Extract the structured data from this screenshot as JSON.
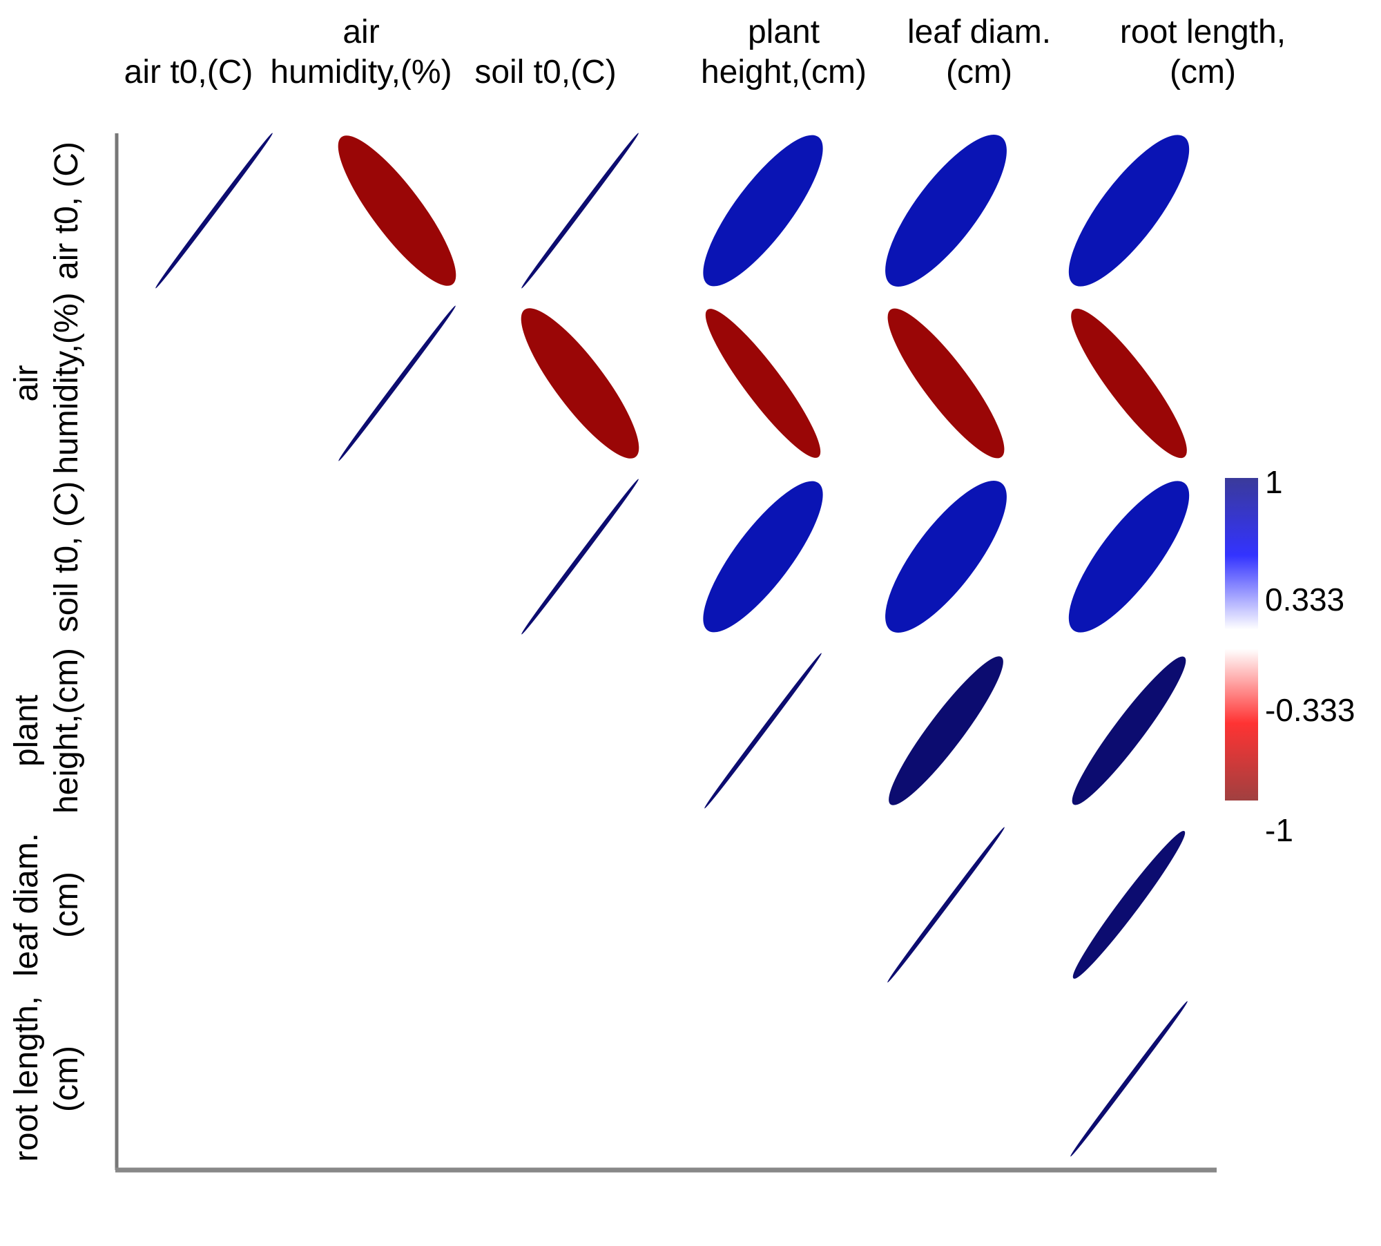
{
  "chart_data": {
    "type": "heatmap",
    "subtype": "correlation-ellipse-upper-triangle",
    "variables": [
      [
        "air t0,(C)"
      ],
      [
        "air",
        "humidity,(%)"
      ],
      [
        "soil t0,(C)"
      ],
      [
        "plant",
        "height,(cm)"
      ],
      [
        "leaf diam.",
        "(cm)"
      ],
      [
        "root length,",
        "(cm)"
      ]
    ],
    "row_labels": [
      [
        "air t0, (C)"
      ],
      [
        "air",
        "humidity,(%)"
      ],
      [
        "soil t0, (C)"
      ],
      [
        "plant",
        "height,(cm)"
      ],
      [
        "leaf diam.",
        "(cm)"
      ],
      [
        "root length,",
        "(cm)"
      ]
    ],
    "correlation_matrix": [
      [
        1.0,
        -0.85,
        1.0,
        0.8,
        0.75,
        0.78
      ],
      [
        null,
        1.0,
        -0.85,
        -0.92,
        -0.88,
        -0.9
      ],
      [
        null,
        null,
        1.0,
        0.8,
        0.75,
        0.78
      ],
      [
        null,
        null,
        null,
        1.0,
        0.93,
        0.95
      ],
      [
        null,
        null,
        null,
        null,
        1.0,
        0.98
      ],
      [
        null,
        null,
        null,
        null,
        null,
        1.0
      ]
    ],
    "colorbar": {
      "range": [
        -1,
        1
      ],
      "ticks": [
        "1",
        "0.333",
        "-0.333",
        "-1"
      ],
      "tick_values": [
        1,
        0.333,
        -0.333,
        -1
      ],
      "placement": "right",
      "colors": {
        "positive_strong": "#00008b",
        "positive_mid": "#3333ff",
        "neutral": "#ffffff",
        "negative_mid": "#ff3333",
        "negative_strong": "#8b0000"
      }
    },
    "ellipse_colors": {
      "positive": "#0a14b4",
      "positive_line": "#0c0c70",
      "negative": "#9a0606"
    },
    "grid": false,
    "legend": "colorbar right"
  }
}
